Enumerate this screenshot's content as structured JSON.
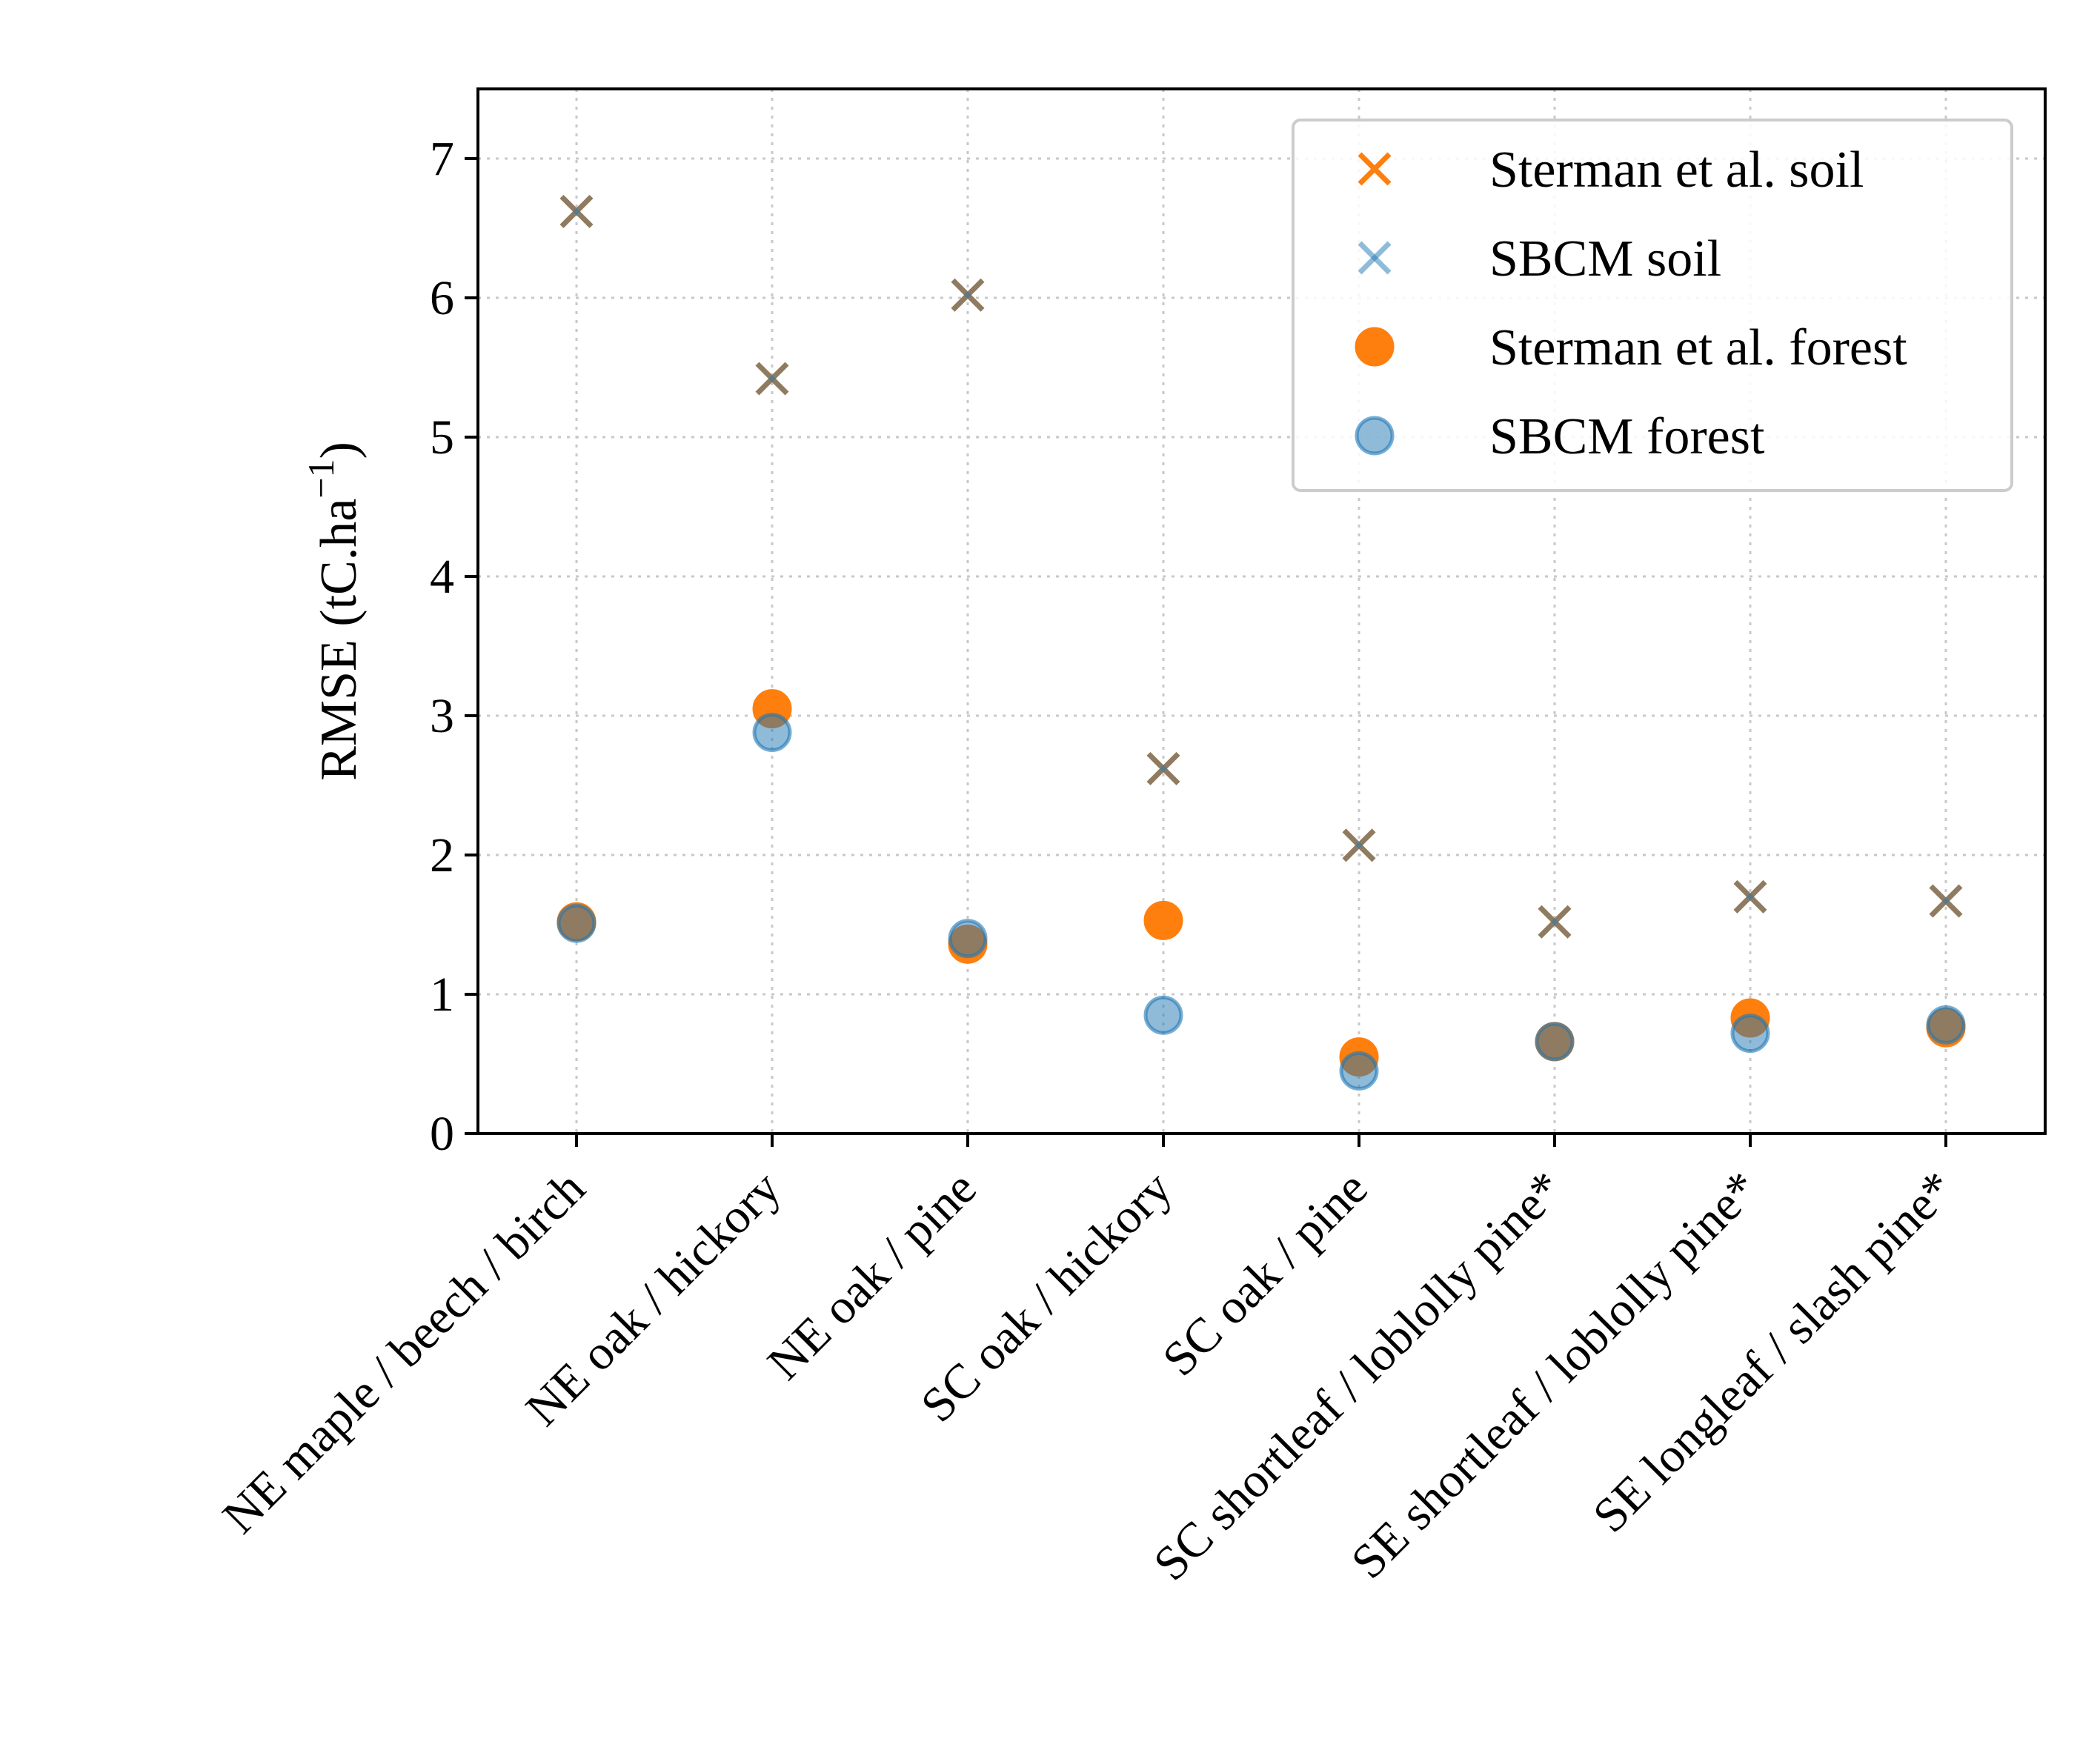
{
  "chart_data": {
    "type": "scatter",
    "title": "",
    "xlabel": "",
    "ylabel": "RMSE (tC.ha",
    "ylabel_sup": "−1",
    "ylabel_close": ")",
    "ylim": [
      0,
      7.5
    ],
    "yticks": [
      0,
      1,
      2,
      3,
      4,
      5,
      6,
      7
    ],
    "grid": true,
    "legend_position": "top-right",
    "categories": [
      "NE maple / beech / birch",
      "NE oak / hickory",
      "NE oak / pine",
      "SC oak / hickory",
      "SC oak / pine",
      "SC shortleaf / loblolly pine*",
      "SE shortleaf / loblolly pine*",
      "SE longleaf / slash pine*"
    ],
    "series": [
      {
        "name": "Sterman et al. soil",
        "marker": "x",
        "color": "#ff7f0e",
        "values": [
          6.62,
          5.42,
          6.02,
          2.62,
          2.07,
          1.52,
          1.7,
          1.67
        ]
      },
      {
        "name": "SBCM soil",
        "marker": "x",
        "color": "#1f77b4",
        "values": [
          6.62,
          5.42,
          6.02,
          2.62,
          2.07,
          1.52,
          1.7,
          1.67
        ]
      },
      {
        "name": "Sterman et al. forest",
        "marker": "o",
        "color": "#ff7f0e",
        "values": [
          1.52,
          3.05,
          1.36,
          1.53,
          0.55,
          0.66,
          0.83,
          0.76
        ]
      },
      {
        "name": "SBCM forest",
        "marker": "o",
        "color": "#1f77b4",
        "values": [
          1.51,
          2.88,
          1.4,
          0.85,
          0.45,
          0.66,
          0.72,
          0.78
        ]
      }
    ]
  }
}
